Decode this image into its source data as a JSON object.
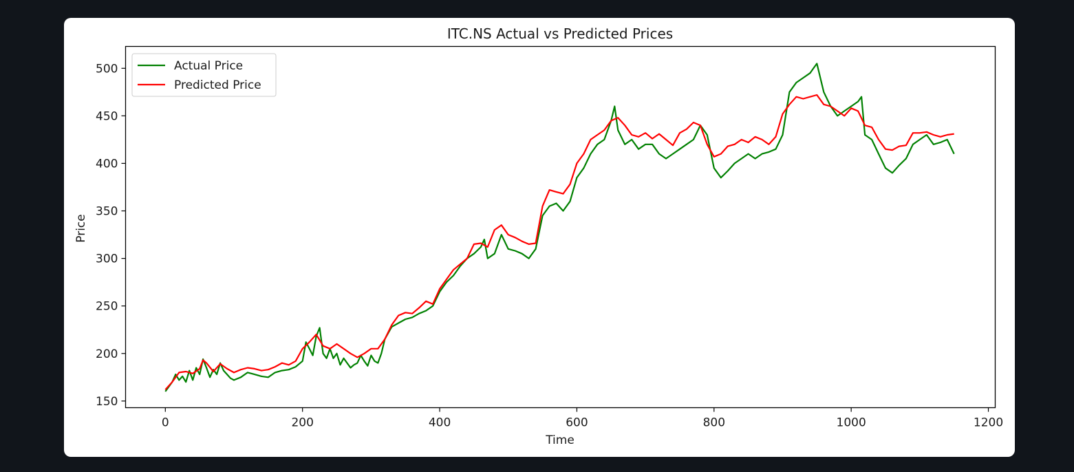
{
  "chart_data": {
    "type": "line",
    "title": "ITC.NS Actual vs Predicted Prices",
    "xlabel": "Time",
    "ylabel": "Price",
    "xlim": [
      -58,
      1210
    ],
    "ylim": [
      143,
      523
    ],
    "xticks": [
      0,
      200,
      400,
      600,
      800,
      1000,
      1200
    ],
    "yticks": [
      150,
      200,
      250,
      300,
      350,
      400,
      450,
      500
    ],
    "grid": false,
    "legend": "top-left",
    "series": [
      {
        "name": "Actual Price",
        "color": "#008000",
        "x": [
          0,
          5,
          10,
          15,
          20,
          25,
          30,
          35,
          40,
          45,
          50,
          55,
          60,
          65,
          70,
          75,
          80,
          85,
          90,
          95,
          100,
          110,
          120,
          130,
          140,
          150,
          160,
          170,
          180,
          190,
          200,
          205,
          210,
          215,
          220,
          225,
          230,
          235,
          240,
          245,
          250,
          255,
          260,
          265,
          270,
          275,
          280,
          285,
          290,
          295,
          300,
          305,
          310,
          315,
          320,
          330,
          340,
          350,
          360,
          370,
          380,
          390,
          400,
          410,
          420,
          430,
          440,
          450,
          460,
          465,
          470,
          480,
          490,
          500,
          510,
          520,
          530,
          540,
          550,
          560,
          570,
          580,
          590,
          600,
          610,
          620,
          630,
          640,
          650,
          655,
          660,
          670,
          680,
          690,
          700,
          710,
          720,
          730,
          740,
          750,
          760,
          770,
          780,
          790,
          800,
          810,
          820,
          830,
          840,
          850,
          860,
          870,
          880,
          890,
          900,
          910,
          920,
          930,
          940,
          945,
          950,
          960,
          970,
          980,
          990,
          1000,
          1010,
          1015,
          1020,
          1030,
          1040,
          1050,
          1060,
          1070,
          1080,
          1090,
          1100,
          1110,
          1120,
          1130,
          1140,
          1150
        ],
        "y": [
          160,
          165,
          170,
          178,
          172,
          176,
          170,
          182,
          172,
          185,
          178,
          194,
          185,
          175,
          183,
          178,
          190,
          182,
          178,
          174,
          172,
          175,
          180,
          178,
          176,
          175,
          180,
          182,
          183,
          186,
          192,
          212,
          205,
          198,
          218,
          227,
          200,
          195,
          205,
          195,
          200,
          188,
          195,
          190,
          185,
          188,
          190,
          198,
          192,
          187,
          198,
          192,
          190,
          200,
          215,
          228,
          232,
          236,
          238,
          242,
          245,
          250,
          265,
          275,
          282,
          292,
          300,
          305,
          312,
          320,
          300,
          305,
          325,
          310,
          308,
          305,
          300,
          310,
          345,
          355,
          358,
          350,
          360,
          385,
          395,
          410,
          420,
          425,
          445,
          460,
          435,
          420,
          425,
          415,
          420,
          420,
          410,
          405,
          410,
          415,
          420,
          425,
          440,
          430,
          395,
          385,
          392,
          400,
          405,
          410,
          405,
          410,
          412,
          415,
          430,
          475,
          485,
          490,
          495,
          500,
          505,
          475,
          460,
          450,
          455,
          460,
          465,
          470,
          430,
          425,
          410,
          395,
          390,
          398,
          405,
          420,
          425,
          430,
          420,
          422,
          425,
          410
        ]
      },
      {
        "name": "Predicted Price",
        "color": "#ff0000",
        "x": [
          0,
          10,
          20,
          30,
          40,
          50,
          55,
          60,
          70,
          80,
          90,
          100,
          110,
          120,
          130,
          140,
          150,
          160,
          170,
          180,
          190,
          200,
          210,
          220,
          230,
          240,
          250,
          260,
          270,
          280,
          290,
          300,
          310,
          320,
          330,
          340,
          350,
          360,
          370,
          380,
          390,
          400,
          410,
          420,
          430,
          440,
          450,
          460,
          470,
          480,
          490,
          500,
          510,
          520,
          530,
          540,
          550,
          560,
          570,
          580,
          590,
          600,
          610,
          620,
          630,
          640,
          650,
          660,
          670,
          680,
          690,
          700,
          710,
          720,
          730,
          740,
          750,
          760,
          770,
          780,
          790,
          800,
          810,
          820,
          830,
          840,
          850,
          860,
          870,
          880,
          890,
          900,
          910,
          920,
          930,
          940,
          950,
          960,
          970,
          980,
          990,
          1000,
          1010,
          1020,
          1030,
          1040,
          1050,
          1060,
          1070,
          1080,
          1090,
          1100,
          1110,
          1120,
          1130,
          1140,
          1150
        ],
        "y": [
          162,
          170,
          180,
          181,
          179,
          184,
          193,
          190,
          181,
          189,
          184,
          180,
          183,
          185,
          184,
          182,
          183,
          186,
          190,
          188,
          192,
          205,
          212,
          220,
          208,
          205,
          210,
          205,
          200,
          196,
          200,
          205,
          205,
          215,
          230,
          240,
          243,
          242,
          248,
          255,
          252,
          268,
          278,
          288,
          294,
          300,
          315,
          316,
          312,
          330,
          335,
          325,
          322,
          318,
          315,
          316,
          355,
          372,
          370,
          368,
          378,
          400,
          410,
          425,
          430,
          435,
          445,
          448,
          440,
          430,
          428,
          432,
          426,
          431,
          425,
          419,
          432,
          436,
          443,
          440,
          420,
          407,
          410,
          418,
          420,
          425,
          422,
          428,
          425,
          420,
          428,
          452,
          462,
          470,
          468,
          470,
          472,
          462,
          460,
          455,
          450,
          458,
          455,
          440,
          438,
          425,
          415,
          414,
          418,
          419,
          432,
          432,
          433,
          430,
          428,
          430,
          431
        ]
      }
    ]
  }
}
